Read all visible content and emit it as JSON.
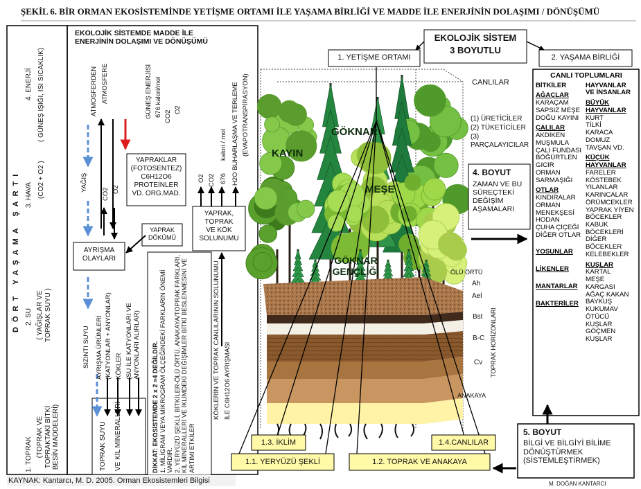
{
  "title": "ŞEKİL 6. BİR ORMAN EKOSİSTEMİNDE YETİŞME ORTAMI İLE YAŞAMA BİRLİĞİ VE MADDE İLE ENERJİNİN DOLAŞIMI / DÖNÜŞÜMÜ",
  "conditions": {
    "heading": "DÖRT YAŞAMA ŞARTI",
    "items": [
      {
        "label": "4. ENERJİ",
        "detail": "( GÜNEŞ IŞIĞI, ISI SICAKLIK)"
      },
      {
        "label": "3. HAVA",
        "detail": "(CO2 + O2 )"
      },
      {
        "label": "2. SU",
        "detail": "( YAĞIŞLAR VE TOPRAK SUYU )"
      },
      {
        "label": "1. TOPRAK",
        "detail": "(TOPRAK VE TOPRAKTAKİ BİTKİ BESİN MADDELERİ)"
      }
    ]
  },
  "cycle": {
    "title": "EKOLOJİK SİSTEMDE MADDE İLE ENERJİNİN DOLAŞIMI VE DÖNÜŞÜMÜ",
    "labels": [
      "ATMOSFERDEN",
      "ATMOSFERE",
      "GÜNEŞ ENERJİSİ",
      "676 kalori/mol",
      "CO2",
      "O2",
      "YAĞIŞ",
      "CO2",
      "O2",
      "O2",
      "CO2",
      "676",
      "kalori / mol",
      "H2O BUHARLAŞMA VE TERLEME",
      "(EVAPOTRANSPİRASYON)",
      "SIZINTI SUYU",
      "AYRIŞMA ÜRÜNLERİ",
      "(KATYONLAR + ANYONLAR)",
      "KÖKLER",
      "(SU İLE KATYONLARI VE ANYONLARI ALIRLAR)",
      "KÖKLERİN VE TOPRAK CANLILARININ SOLUNUMU",
      "İLE C6H12O6 AYRIŞMASI"
    ],
    "boxes": {
      "leaves": [
        "YAPRAKLAR",
        "(FOTOSENTEZ)",
        "C6H12O6",
        "PROTEİNLER",
        "VD. ORG.MAD."
      ],
      "litterfall": [
        "YAPRAK",
        "DÖKÜMÜ"
      ],
      "respiration": [
        "YAPRAK,",
        "TOPRAK",
        "VE KÖK",
        "SOLUNUMU"
      ],
      "decomposition": [
        "AYRIŞMA",
        "OLAYLARI"
      ],
      "soil_water": [
        "TOPRAK SUYU",
        "VE KİL MİNERALLERİ"
      ]
    },
    "note": {
      "heading": "DİKKAT: EKOSİSTEMDE 2 x 2 =4 DEĞİLDİR.",
      "items": [
        "1. MİLİGRAM VEYA MİKROGRAM ÖLÇEĞİNDEKİ FARKLARIN ÖNEMİ VARDIR.",
        "2. YERYÜZÜ ŞEKLİ, BİTKİLER-ÖLÜ ÖRTÜ, ANAKAYA/TOPRAK FARKLARI, KİL MİNERALLERİ VE İKLİMDEKİ DEĞİŞİMLER BİTKİ BESLENMESİNİ VE ARTIMI ETKİLER"
      ]
    }
  },
  "system": {
    "site": "1. YETİŞME ORTAMI",
    "title": [
      "EKOLOJİK SİSTEM",
      "3 BOYUTLU"
    ],
    "community": "2. YAŞAMA BİRLİĞİ"
  },
  "forest": {
    "trees": [
      "KAYIN",
      "GÖKNAR",
      "MEŞE",
      "GÖKNAR GENÇLİĞİ"
    ],
    "litter": "ÖLÜ ÖRTÜ",
    "horizons": [
      "Ah",
      "Ael",
      "Bst",
      "B-C",
      "Cv",
      "ANAKAYA"
    ],
    "horizons_label": "TOPRAK HORİZONLARI"
  },
  "factors": [
    "1.1. YERYÜZÜ ŞEKLİ",
    "1.2. TOPRAK VE ANAKAYA",
    "1.3. İKLİM",
    "1.4.CANLILAR"
  ],
  "organisms": {
    "heading": "CANLILAR",
    "items": [
      "(1) ÜRETİCİLER",
      "(2) TÜKETİCİLER",
      "(3) PARÇALAYICILAR"
    ]
  },
  "time": {
    "heading": "4. BOYUT",
    "text": "ZAMAN VE BU SÜREÇTEKİ DEĞİŞİM AŞAMALARI"
  },
  "communities": {
    "title": "CANLI TOPLUMLARI",
    "plants": {
      "heading": "BİTKİLER",
      "groups": [
        {
          "heading": "AĞAÇLAR",
          "items": [
            "KARAÇAM",
            "SAPSIZ MEŞE",
            "DOĞU KAYINI"
          ]
        },
        {
          "heading": "ÇALILAR",
          "items": [
            "AKDİKEN",
            "MUŞMULA",
            "ÇALI FUNDASI",
            "BÖĞÜRTLEN",
            "GICIR",
            "ORMAN SARMAŞIĞI"
          ]
        },
        {
          "heading": "OTLAR",
          "items": [
            "KINDIRALAR",
            "ORMAN MENEKŞESİ",
            "HODAN",
            "ÇUHA ÇİÇEĞİ",
            "DİĞER OTLAR"
          ]
        },
        {
          "heading": "YOSUNLAR",
          "items": []
        },
        {
          "heading": "LİKENLER",
          "items": []
        },
        {
          "heading": "MANTARLAR",
          "items": []
        },
        {
          "heading": "BAKTERİLER",
          "items": []
        }
      ]
    },
    "animals": {
      "heading": "HAYVANLAR VE İNSANLAR",
      "groups": [
        {
          "heading": "BÜYÜK HAYVANLAR",
          "items": [
            "KURT",
            "TİLKİ",
            "KARACA",
            "DOMUZ",
            "TAVŞAN VD."
          ]
        },
        {
          "heading": "KÜÇÜK HAYVANLAR",
          "items": [
            "FARELER",
            "KÖSTEBEK",
            "YILANLAR",
            "KARINCALAR",
            "ÖRÜMCEKLER",
            "YAPRAK YİYEN BÖCEKLER",
            "KABUK BÖCEKLERİ",
            "DİĞER BÖCEKLER",
            "KELEBEKLER"
          ]
        },
        {
          "heading": "KUŞLAR",
          "items": [
            "KARTAL",
            "MEŞE KARGASI",
            "AĞAÇ KAKAN",
            "BAYKUŞ",
            "KUKUMAV",
            "ÖTÜCÜ KUŞLAR",
            "GÖÇMEN KUŞLAR"
          ]
        }
      ]
    }
  },
  "knowledge": {
    "heading": "5. BOYUT",
    "text": "BİLGİ VE BİLGİYİ BİLİME DÖNÜŞTÜRMEK (SİSTEMLEŞTİRMEK)"
  },
  "author": "M. DOĞAN KANTARCI",
  "source": "KAYNAK: Kantarcı, M. D. 2005. Orman Ekosistemleri Bilgisi"
}
